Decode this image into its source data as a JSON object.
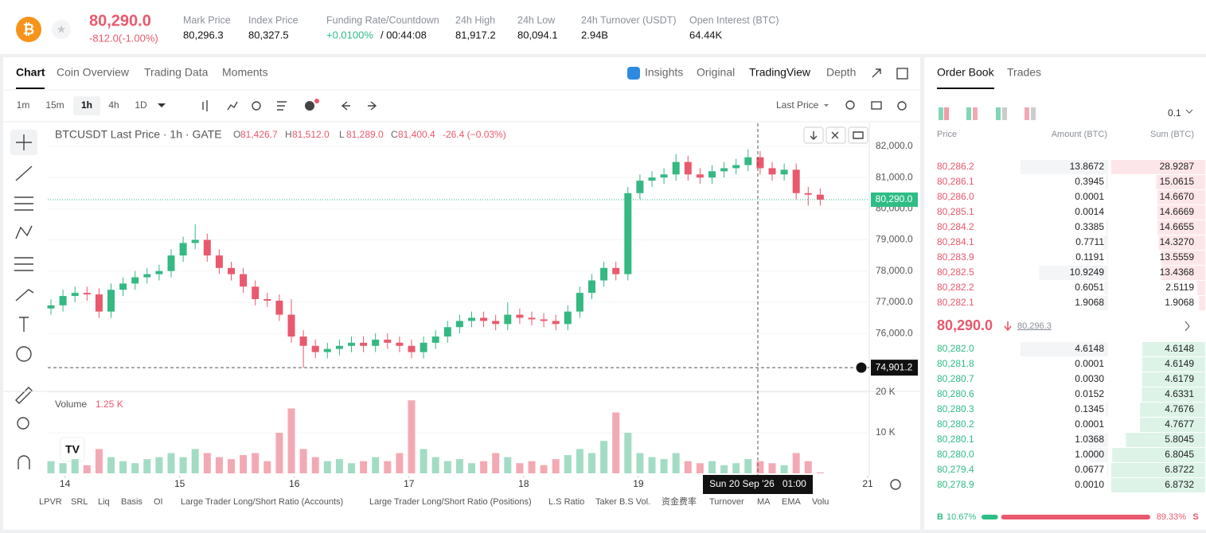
{
  "header": {
    "price": "80,290.0",
    "change": "-812.0(-1.00%)",
    "stats": [
      {
        "label": "Mark Price",
        "value": "80,296.3"
      },
      {
        "label": "Index Price",
        "value": "80,327.5"
      },
      {
        "label": "Funding Rate/Countdown",
        "value": "+0.0100%",
        "value2": "/ 00:44:08"
      },
      {
        "label": "24h High",
        "value": "81,917.2"
      },
      {
        "label": "24h Low",
        "value": "80,094.1"
      },
      {
        "label": "24h Turnover (USDT)",
        "value": "2.94B"
      },
      {
        "label": "Open Interest (BTC)",
        "value": "64.44K"
      }
    ]
  },
  "tabs": [
    "Chart",
    "Coin Overview",
    "Trading Data",
    "Moments"
  ],
  "views": [
    "Insights",
    "Original",
    "TradingView",
    "Depth"
  ],
  "intervals": [
    "1m",
    "15m",
    "1h",
    "4h",
    "1D"
  ],
  "price_type": "Last Price",
  "legend": {
    "symbol": "BTCUSDT Last Price · 1h · GATE",
    "ohlc": [
      {
        "key": "O",
        "value": "81,426.7"
      },
      {
        "key": "H",
        "value": "81,512.0"
      },
      {
        "key": "L",
        "value": "81,289.0"
      },
      {
        "key": "C",
        "value": "81,400.4"
      }
    ],
    "change": "-26.4 (−0.03%)"
  },
  "volume_legend": {
    "label": "Volume",
    "value": "1.25 K"
  },
  "chart_data": {
    "type": "candlestick",
    "open": [
      76800,
      76900,
      77200,
      77300,
      77250,
      76700,
      77400,
      77600,
      77800,
      77900,
      78000,
      78500,
      78900,
      79000,
      78500,
      78100,
      77900,
      77500,
      77100,
      77050,
      76600,
      75900,
      75600,
      75400,
      75500,
      75600,
      75700,
      75600,
      75800,
      75700,
      75600,
      75400,
      75700,
      75900,
      76200,
      76400,
      76500,
      76400,
      76300,
      76600,
      76500,
      76450,
      76400,
      76300,
      76700,
      77300,
      77700,
      78100,
      77900,
      80500,
      80900,
      81000,
      81100,
      81500,
      81100,
      81000,
      81200,
      81300,
      81400,
      81650,
      81300,
      81100,
      81250,
      80500,
      80450
    ],
    "high": [
      77100,
      77400,
      77500,
      77500,
      77450,
      77600,
      77800,
      78000,
      78100,
      78200,
      78700,
      79100,
      79500,
      79200,
      78700,
      78300,
      78100,
      77700,
      77300,
      77250,
      77100,
      76100,
      75800,
      75700,
      75800,
      75900,
      75900,
      76000,
      76000,
      75900,
      75800,
      75900,
      76100,
      76400,
      76600,
      76700,
      76700,
      76600,
      77000,
      76800,
      76700,
      76650,
      76600,
      76900,
      77500,
      77900,
      78300,
      78300,
      80700,
      81100,
      81200,
      81300,
      81750,
      81700,
      81300,
      81400,
      81500,
      81600,
      81900,
      81850,
      81500,
      81450,
      81450,
      80700,
      80650
    ],
    "low": [
      76600,
      76700,
      77000,
      77050,
      76500,
      76500,
      77200,
      77400,
      77600,
      77700,
      77800,
      78300,
      78700,
      78300,
      77900,
      77700,
      77300,
      76900,
      76850,
      76400,
      75700,
      74901,
      75200,
      75200,
      75300,
      75400,
      75400,
      75400,
      75500,
      75400,
      75200,
      75200,
      75500,
      75700,
      76000,
      76200,
      76200,
      76100,
      76100,
      76300,
      76250,
      76200,
      76100,
      76100,
      76500,
      77100,
      77500,
      77700,
      77700,
      80300,
      80700,
      80800,
      80900,
      80900,
      80800,
      80800,
      81000,
      81100,
      81200,
      81100,
      80900,
      80900,
      80300,
      80100,
      80100
    ],
    "close": [
      76900,
      77200,
      77300,
      77250,
      76700,
      77400,
      77600,
      77800,
      77900,
      78000,
      78500,
      78900,
      79000,
      78500,
      78100,
      77900,
      77500,
      77100,
      77050,
      76600,
      75900,
      75600,
      75400,
      75500,
      75600,
      75700,
      75600,
      75800,
      75700,
      75600,
      75400,
      75700,
      75900,
      76200,
      76400,
      76500,
      76400,
      76300,
      76600,
      76500,
      76450,
      76400,
      76300,
      76700,
      77300,
      77700,
      78100,
      77900,
      80500,
      80900,
      81000,
      81100,
      81500,
      81100,
      81000,
      81200,
      81300,
      81400,
      81650,
      81300,
      81100,
      81250,
      80500,
      80450,
      80290
    ],
    "volume": [
      3000,
      2500,
      3500,
      2000,
      6000,
      4000,
      3000,
      2500,
      3500,
      4000,
      5000,
      4000,
      6000,
      5000,
      4000,
      3500,
      4500,
      5000,
      3000,
      10000,
      16000,
      6000,
      4000,
      3000,
      3500,
      2500,
      3000,
      4000,
      3000,
      5000,
      18000,
      6000,
      4000,
      3000,
      3500,
      2500,
      3000,
      5000,
      4000,
      2500,
      3000,
      2000,
      3500,
      4500,
      6000,
      5000,
      8000,
      15000,
      10000,
      5000,
      4000,
      3500,
      5000,
      3000,
      2500,
      3000,
      2000,
      2500,
      3500,
      3000,
      2500,
      2000,
      5000,
      3000,
      229.6
    ],
    "up_color": "#35b882",
    "down_color": "#e9596d",
    "up_volume_color": "#a3dcc4",
    "down_volume_color": "#f3a9b3",
    "ylim": [
      74190,
      82740
    ],
    "yticks": [
      {
        "value": 76000,
        "label": "76,000.0"
      },
      {
        "value": 77000,
        "label": "77,000.0"
      },
      {
        "value": 78000,
        "label": "78,000.0"
      },
      {
        "value": 79000,
        "label": "79,000.0"
      },
      {
        "value": 80000,
        "label": "80,000.0"
      },
      {
        "value": 81000,
        "label": "81,000.0"
      },
      {
        "value": 82000,
        "label": "82,000.0"
      }
    ],
    "volume_ylim": [
      0,
      20000
    ],
    "volume_ticks": [
      {
        "value": 10000,
        "label": "10 K"
      },
      {
        "value": 20000,
        "label": "20 K"
      }
    ],
    "xlim": [
      13.85,
      21
    ],
    "xticks": [
      14,
      15,
      16,
      17,
      18,
      19,
      21
    ],
    "last_price": {
      "value": 80290,
      "label": "80,290.0"
    },
    "crosshair_price": {
      "value": 74901.2,
      "label": "74,901.2"
    },
    "crosshair_time": "Sun 20 Sep '26   01:00"
  },
  "indicators": [
    "LPVR",
    "SRL",
    "Liq",
    "Basis",
    "OI",
    "Large Trader Long/Short Ratio (Accounts)",
    "Large Trader Long/Short Ratio (Positions)",
    "L.S Ratio",
    "Taker B.S Vol.",
    "资金费率",
    "Turnover",
    "MA",
    "EMA",
    "Volu"
  ],
  "order_book": {
    "tabs": [
      "Order Book",
      "Trades"
    ],
    "step": "0.1",
    "columns": [
      "Price",
      "Amount (BTC)",
      "Sum (BTC)"
    ],
    "asks": [
      [
        "80,286.2",
        "13.8672",
        "28.9287"
      ],
      [
        "80,286.1",
        "0.3945",
        "15.0615"
      ],
      [
        "80,286.0",
        "0.0001",
        "14.6670"
      ],
      [
        "80,285.1",
        "0.0014",
        "14.6669"
      ],
      [
        "80,284.2",
        "0.3385",
        "14.6655"
      ],
      [
        "80,284.1",
        "0.7711",
        "14.3270"
      ],
      [
        "80,283.9",
        "0.1191",
        "13.5559"
      ],
      [
        "80,282.5",
        "10.9249",
        "13.4368"
      ],
      [
        "80,282.2",
        "0.6051",
        "2.5119"
      ],
      [
        "80,282.1",
        "1.9068",
        "1.9068"
      ]
    ],
    "mid": "80,290.0",
    "mark": "80,296.3",
    "bids": [
      [
        "80,282.0",
        "4.6148",
        "4.6148"
      ],
      [
        "80,281.8",
        "0.0001",
        "4.6149"
      ],
      [
        "80,280.7",
        "0.0030",
        "4.6179"
      ],
      [
        "80,280.6",
        "0.0152",
        "4.6331"
      ],
      [
        "80,280.3",
        "0.1345",
        "4.7676"
      ],
      [
        "80,280.2",
        "0.0001",
        "4.7677"
      ],
      [
        "80,280.1",
        "1.0368",
        "5.8045"
      ],
      [
        "80,280.0",
        "1.0000",
        "6.8045"
      ],
      [
        "80,279.4",
        "0.0677",
        "6.8722"
      ],
      [
        "80,278.9",
        "0.0010",
        "6.8732"
      ]
    ],
    "buy": {
      "letter": "B",
      "value": 10.67,
      "label": "10.67%"
    },
    "sell": {
      "letter": "S",
      "value": 89.33,
      "label": "89.33%"
    }
  }
}
